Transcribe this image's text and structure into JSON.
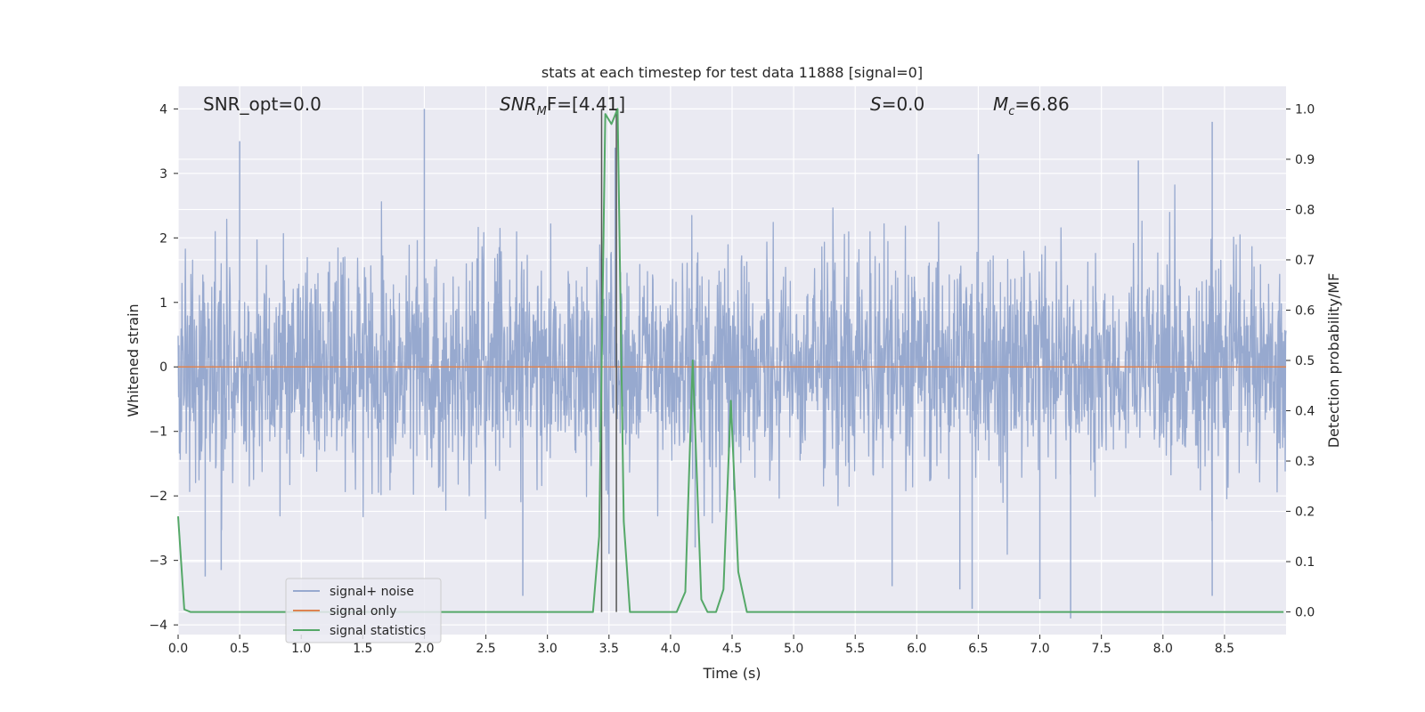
{
  "chart_data": {
    "type": "line",
    "title": "stats at each timestep for test data 11888 [signal=0]",
    "xlabel": "Time (s)",
    "ylabel_left": "Whitened strain",
    "ylabel_right": "Detection probability/MF",
    "xlim": [
      0.0,
      9.0
    ],
    "ylim_left": [
      -4.15,
      4.35
    ],
    "ylim_right": [
      -0.045,
      1.045
    ],
    "x_ticks": [
      "0.0",
      "0.5",
      "1.0",
      "1.5",
      "2.0",
      "2.5",
      "3.0",
      "3.5",
      "4.0",
      "4.5",
      "5.0",
      "5.5",
      "6.0",
      "6.5",
      "7.0",
      "7.5",
      "8.0",
      "8.5"
    ],
    "y_ticks_left": [
      "−4",
      "−3",
      "−2",
      "−1",
      "0",
      "1",
      "2",
      "3",
      "4"
    ],
    "y_ticks_right": [
      "0.0",
      "0.1",
      "0.2",
      "0.3",
      "0.4",
      "0.5",
      "0.6",
      "0.7",
      "0.8",
      "0.9",
      "1.0"
    ],
    "grid": true,
    "legend_position": "lower-left",
    "colors": {
      "plot_bg": "#eaeaf2",
      "grid": "#ffffff",
      "noise": "#97a9cf",
      "signal_only": "#dd8452",
      "statistics": "#55a868",
      "mf_marker": "#555555"
    },
    "annotations": [
      {
        "text": "SNR_opt=0.0"
      },
      {
        "text": "SNR",
        "sub": "M",
        "text2": "F=[4.41]"
      },
      {
        "text": "S",
        "text2": "=0.0"
      },
      {
        "text": "M",
        "sub": "c",
        "text2": "=6.86"
      }
    ],
    "series": [
      {
        "name": "signal+ noise",
        "axis": "left",
        "kind": "noise",
        "spikes": [
          {
            "x": 0.5,
            "y": 3.5
          },
          {
            "x": 2.0,
            "y": 4.0
          },
          {
            "x": 3.55,
            "y": 3.4
          },
          {
            "x": 8.4,
            "y": 3.8
          },
          {
            "x": 6.5,
            "y": 3.3
          },
          {
            "x": 7.8,
            "y": 3.2
          },
          {
            "x": 0.22,
            "y": -3.25
          },
          {
            "x": 0.35,
            "y": -3.15
          },
          {
            "x": 2.8,
            "y": -3.55
          },
          {
            "x": 6.35,
            "y": -3.45
          },
          {
            "x": 7.25,
            "y": -3.9
          },
          {
            "x": 8.4,
            "y": -3.55
          },
          {
            "x": 6.45,
            "y": -3.75
          },
          {
            "x": 7.0,
            "y": -3.6
          },
          {
            "x": 3.5,
            "y": -2.9
          },
          {
            "x": 4.2,
            "y": -2.8
          },
          {
            "x": 5.8,
            "y": -3.4
          }
        ]
      },
      {
        "name": "signal only",
        "axis": "left",
        "kind": "flat",
        "x": [
          0.0,
          9.0
        ],
        "y": [
          0.0,
          0.0
        ]
      },
      {
        "name": "signal statistics",
        "axis": "right",
        "kind": "line",
        "x": [
          0.0,
          0.05,
          0.1,
          3.37,
          3.42,
          3.47,
          3.52,
          3.57,
          3.62,
          3.67,
          4.05,
          4.12,
          4.18,
          4.25,
          4.3,
          4.37,
          4.43,
          4.49,
          4.55,
          4.62,
          8.98
        ],
        "y": [
          0.19,
          0.005,
          0.0,
          0.0,
          0.15,
          0.99,
          0.97,
          1.0,
          0.18,
          0.0,
          0.0,
          0.04,
          0.5,
          0.025,
          0.0,
          0.0,
          0.045,
          0.42,
          0.08,
          0.0,
          0.0
        ]
      }
    ],
    "mf_markers": [
      {
        "x": 3.44,
        "y0": 0.0,
        "y1": 1.0
      },
      {
        "x": 3.56,
        "y0": 0.0,
        "y1": 1.0
      }
    ]
  }
}
